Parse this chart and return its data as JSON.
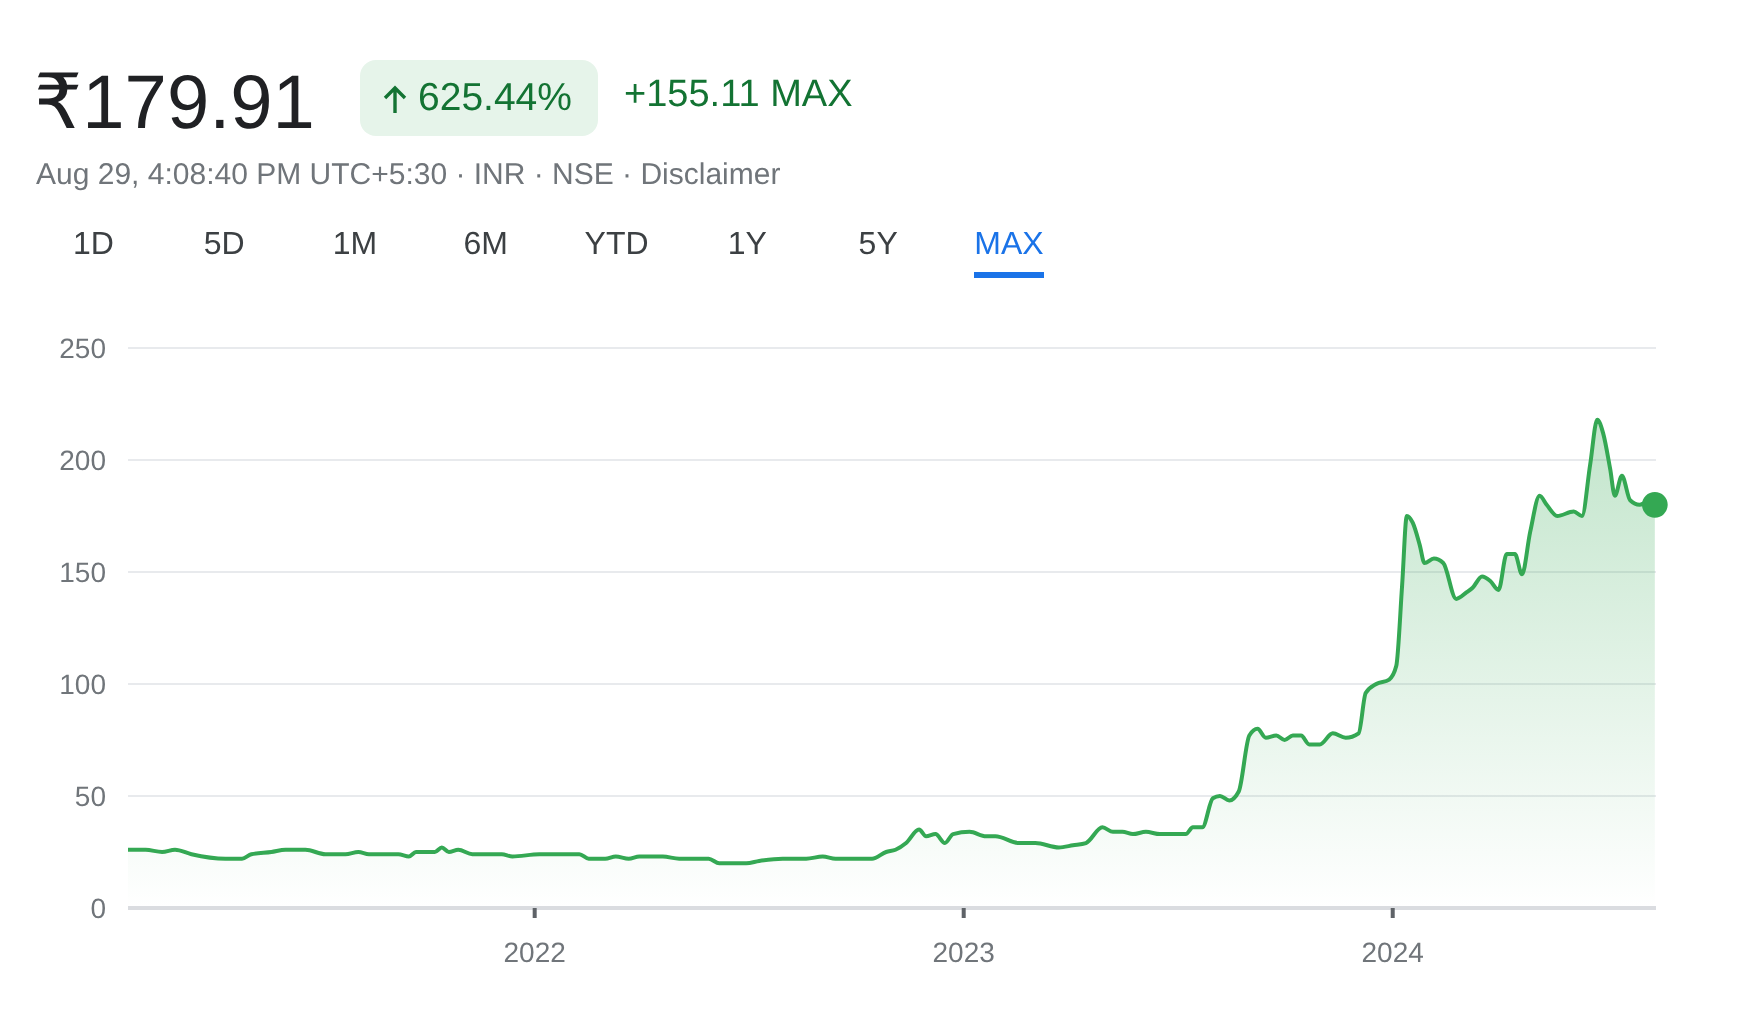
{
  "chart_data": {
    "type": "area",
    "title": "₹179.91",
    "subtitle": "Aug 29, 4:08:40 PM UTC+5:30 · INR · NSE · Disclaimer",
    "annotations": [
      "625.44%",
      "+155.11 MAX",
      "1D",
      "5D",
      "1M",
      "6M",
      "YTD",
      "1Y",
      "5Y",
      "MAX"
    ],
    "series": [
      {
        "color": "#34a853",
        "x": [
          "2021-01-20",
          "2021-02-04",
          "2021-02-18",
          "2021-03-01",
          "2021-03-15",
          "2021-04-13",
          "2021-04-27",
          "2021-05-05",
          "2021-05-22",
          "2021-06-03",
          "2021-06-20",
          "2021-07-07",
          "2021-07-24",
          "2021-08-04",
          "2021-08-13",
          "2021-09-07",
          "2021-09-16",
          "2021-09-22",
          "2021-10-08",
          "2021-10-14",
          "2021-10-20",
          "2021-10-28",
          "2021-11-09",
          "2021-12-04",
          "2021-12-13",
          "2022-01-05",
          "2022-01-16",
          "2022-02-08",
          "2022-02-16",
          "2022-03-02",
          "2022-03-11",
          "2022-03-22",
          "2022-03-31",
          "2022-04-20",
          "2022-05-04",
          "2022-05-29",
          "2022-06-07",
          "2022-06-30",
          "2022-07-11",
          "2022-07-31",
          "2022-08-20",
          "2022-09-03",
          "2022-09-14",
          "2022-10-15",
          "2022-10-27",
          "2022-11-04",
          "2022-11-13",
          "2022-11-24",
          "2022-11-30",
          "2022-12-08",
          "2022-12-16",
          "2022-12-23",
          "2023-01-06",
          "2023-01-20",
          "2023-01-28",
          "2023-02-17",
          "2023-03-03",
          "2023-03-23",
          "2023-04-04",
          "2023-04-15",
          "2023-04-29",
          "2023-05-08",
          "2023-05-16",
          "2023-05-25",
          "2023-06-05",
          "2023-06-17",
          "2023-07-03",
          "2023-07-09",
          "2023-07-15",
          "2023-07-23",
          "2023-08-01",
          "2023-08-07",
          "2023-08-15",
          "2023-08-23",
          "2023-09-01",
          "2023-09-08",
          "2023-09-15",
          "2023-09-24",
          "2023-10-01",
          "2023-10-08",
          "2023-10-15",
          "2023-10-22",
          "2023-10-31",
          "2023-11-11",
          "2023-11-22",
          "2023-12-03",
          "2023-12-09",
          "2023-12-18",
          "2023-12-29",
          "2024-01-04",
          "2024-01-09",
          "2024-01-13",
          "2024-01-18",
          "2024-01-24",
          "2024-01-28",
          "2024-02-05",
          "2024-02-13",
          "2024-02-24",
          "2024-03-04",
          "2024-03-09",
          "2024-03-17",
          "2024-03-24",
          "2024-03-31",
          "2024-04-07",
          "2024-04-14",
          "2024-04-20",
          "2024-04-27",
          "2024-05-05",
          "2024-05-11",
          "2024-05-20",
          "2024-06-03",
          "2024-06-10",
          "2024-06-17",
          "2024-06-23",
          "2024-06-28",
          "2024-07-04",
          "2024-07-08",
          "2024-07-14",
          "2024-07-21",
          "2024-07-29",
          "2024-08-04",
          "2024-08-11"
        ],
        "values": [
          26,
          26,
          25,
          26,
          24,
          22,
          22,
          24,
          25,
          26,
          26,
          24,
          24,
          25,
          24,
          24,
          23,
          25,
          25,
          27,
          25,
          26,
          24,
          24,
          23,
          24,
          24,
          24,
          22,
          22,
          23,
          22,
          23,
          23,
          22,
          22,
          20,
          20,
          21,
          22,
          22,
          23,
          22,
          22,
          25,
          26,
          29,
          35,
          32,
          33,
          29,
          33,
          34,
          32,
          32,
          29,
          29,
          27,
          28,
          29,
          36,
          34,
          34,
          33,
          34,
          33,
          33,
          33,
          36,
          36,
          49,
          50,
          48,
          52,
          77,
          80,
          76,
          77,
          75,
          77,
          77,
          73,
          73,
          78,
          76,
          78,
          96,
          100,
          102,
          108,
          144,
          175,
          172,
          162,
          154,
          156,
          154,
          138,
          141,
          143,
          148,
          146,
          142,
          158,
          158,
          149,
          168,
          184,
          180,
          175,
          177,
          175,
          198,
          218,
          212,
          196,
          184,
          193,
          182,
          180,
          181,
          180
        ]
      },
      {
        "type": "scatter",
        "color": "#34a853",
        "marker": "circle",
        "x": [
          "2024-08-11"
        ],
        "values": [
          180
        ]
      }
    ],
    "xlim": [
      "2021-01-20",
      "2024-08-12"
    ],
    "xticks": [
      "2022",
      "2023",
      "2024"
    ],
    "ylim": [
      0,
      250
    ],
    "yticks": [
      0,
      50,
      100,
      150,
      200,
      250
    ],
    "grid": "y"
  }
}
